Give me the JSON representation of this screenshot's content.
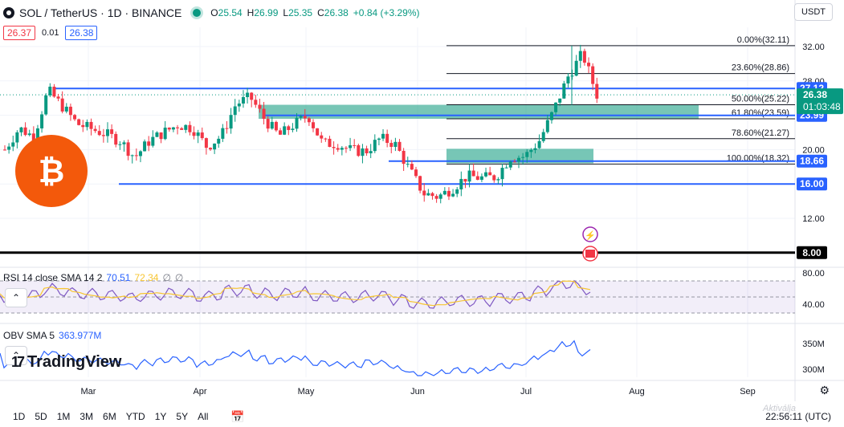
{
  "header": {
    "title": "SOL / TetherUS · 1D · BINANCE",
    "ohlc": [
      {
        "k": "O",
        "v": "25.54"
      },
      {
        "k": "H",
        "v": "26.99"
      },
      {
        "k": "L",
        "v": "25.35"
      },
      {
        "k": "C",
        "v": "26.38"
      },
      {
        "k": "",
        "v": "+0.84 (+3.29%)"
      }
    ]
  },
  "bid_ask": {
    "sell": "26.37",
    "spread": "0.01",
    "buy": "26.38"
  },
  "currency": "USDT",
  "colors": {
    "up": "#089981",
    "down": "#f23645",
    "accent": "#2962ff",
    "fib_zone": "#2ea88f",
    "marker": "#f3590b"
  },
  "chart_data": {
    "type": "candlestick",
    "x_ticks": [
      "Mar",
      "Apr",
      "May",
      "Jun",
      "Jul",
      "Aug",
      "Sep"
    ],
    "y_ticks": [
      "32.00",
      "28.00",
      "24.00",
      "20.00",
      "16.00",
      "12.00",
      "8.00"
    ],
    "price_labels": [
      {
        "label": "27.12",
        "value": 27.12
      },
      {
        "label": "23.99",
        "value": 23.99
      },
      {
        "label": "18.66",
        "value": 18.66
      },
      {
        "label": "16.00",
        "value": 16.0
      },
      {
        "label": "8.00",
        "value": 8.0
      }
    ],
    "current": {
      "price": "26.38",
      "countdown": "01:03:48"
    },
    "fib_levels": [
      {
        "label": "0.00%(32.11)",
        "value": 32.11
      },
      {
        "label": "23.60%(28.86)",
        "value": 28.86
      },
      {
        "label": "50.00%(25.22)",
        "value": 25.22
      },
      {
        "label": "61.80%(23.59)",
        "value": 23.59
      },
      {
        "label": "78.60%(21.27)",
        "value": 21.27
      },
      {
        "label": "100.00%(18.32)",
        "value": 18.32
      }
    ],
    "price_path": [
      20,
      22.5,
      21.5,
      26.9,
      25,
      23,
      22.4,
      21.8,
      21,
      19.1,
      21,
      22,
      22.9,
      22.5,
      20.3,
      21.6,
      25.3,
      26.1,
      23.5,
      21.6,
      22.9,
      24,
      20.7,
      20.7,
      19.9,
      19.8,
      21.3,
      20.7,
      17.7,
      14.9,
      14.5,
      15.5,
      16.9,
      16.7,
      16.8,
      19.1,
      19.2,
      21,
      24.5,
      28.5,
      31.2,
      26.4
    ]
  },
  "rsi": {
    "label": "RSI 14 close SMA 14 2",
    "v1": "70.51",
    "v2": "72.34",
    "v3": "∅",
    "v4": "∅",
    "ticks": [
      "80.00",
      "40.00"
    ]
  },
  "obv": {
    "label": "OBV SMA 5",
    "v1": "363.977M",
    "ticks": [
      "350M",
      "300M"
    ]
  },
  "brand": "TradingView",
  "timeframes": [
    "1D",
    "5D",
    "1M",
    "3M",
    "6M",
    "YTD",
    "1Y",
    "5Y",
    "All"
  ],
  "clock": "22:56:11 (UTC)",
  "watermark": "Aktiválja"
}
